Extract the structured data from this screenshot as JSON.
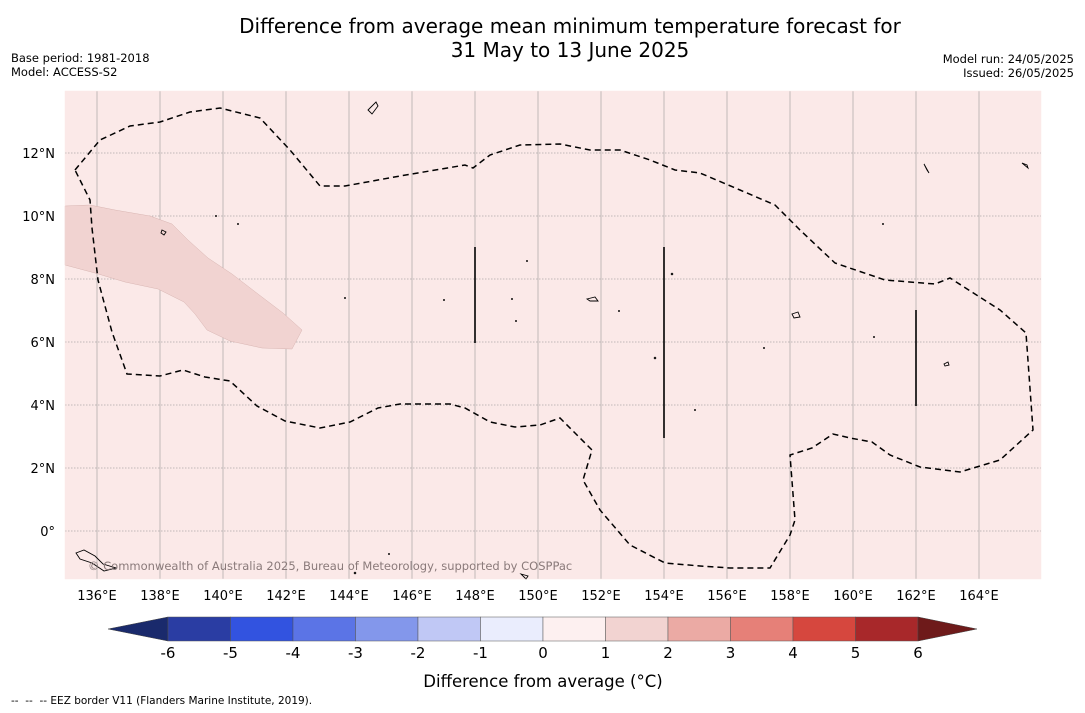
{
  "title": {
    "line1": "Difference from average mean minimum temperature forecast for",
    "line2": "31 May to 13 June 2025"
  },
  "meta_left": {
    "base_period": "Base period: 1981-2018",
    "model": "Model: ACCESS-S2"
  },
  "meta_right": {
    "model_run": "Model run: 24/05/2025",
    "issued": "Issued: 26/05/2025"
  },
  "map": {
    "background_color": "#fbe9e8",
    "anomaly_patch_color": "#f1d3d1",
    "lon_labels": [
      "136°E",
      "138°E",
      "140°E",
      "142°E",
      "144°E",
      "146°E",
      "148°E",
      "150°E",
      "152°E",
      "154°E",
      "156°E",
      "158°E",
      "160°E",
      "162°E",
      "164°E"
    ],
    "lat_labels": [
      "12°N",
      "10°N",
      "8°N",
      "6°N",
      "4°N",
      "2°N",
      "0°"
    ],
    "copyright": "© Commonwealth of Australia 2025, Bureau of Meteorology, supported by COSPPac"
  },
  "colorbar": {
    "label": "Difference from average (°C)",
    "ticks": [
      "-6",
      "-5",
      "-4",
      "-3",
      "-2",
      "-1",
      "0",
      "1",
      "2",
      "3",
      "4",
      "5",
      "6"
    ],
    "colors": {
      "below": "#1a2a6c",
      "segments": [
        "#2a3da3",
        "#3253e0",
        "#5b74e6",
        "#8397eb",
        "#c0c8f5",
        "#eaedfd",
        "#fdf0f0",
        "#f2d3d1",
        "#ebaaa4",
        "#e68078",
        "#d6473e",
        "#a8282a"
      ],
      "above": "#6e1a1a"
    }
  },
  "footer": {
    "eez_note": "--  --  -- EEZ border V11 (Flanders Marine Institute, 2019)."
  }
}
